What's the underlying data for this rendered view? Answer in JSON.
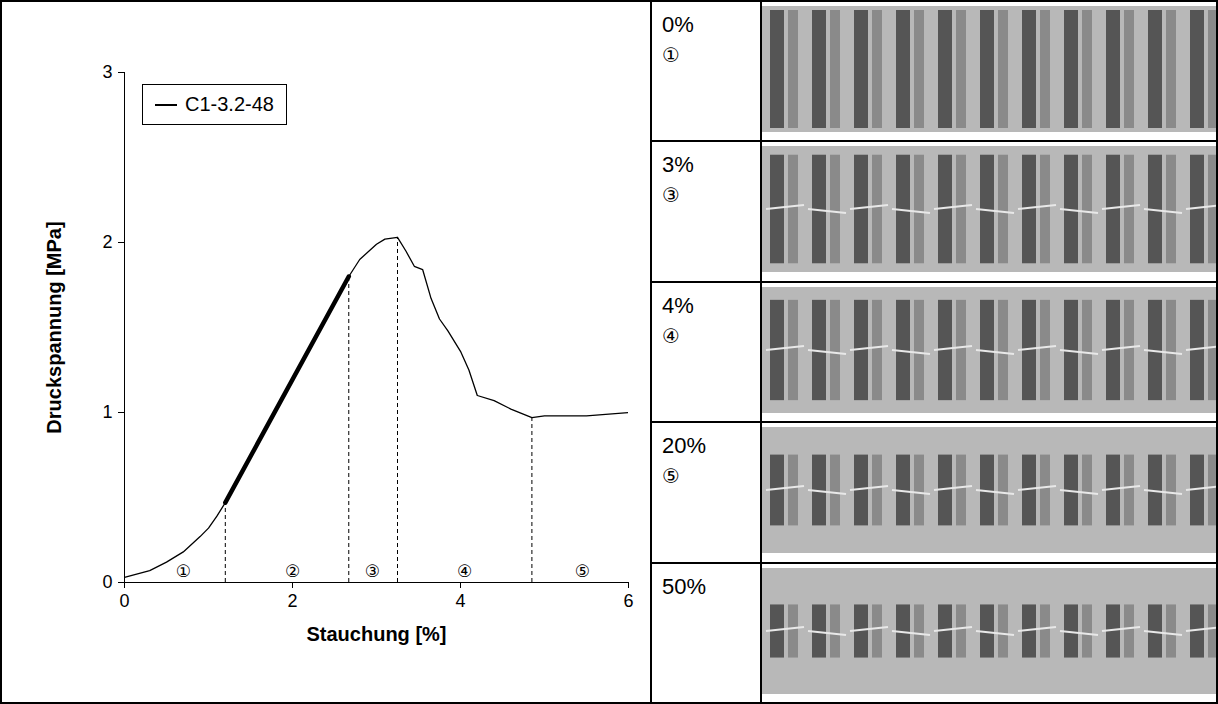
{
  "chart_data": {
    "type": "line",
    "xlabel": "Stauchung [%]",
    "ylabel": "Druckspannung [MPa]",
    "xlim": [
      0,
      6
    ],
    "ylim": [
      0,
      3
    ],
    "xticks": [
      0,
      2,
      4,
      6
    ],
    "yticks": [
      0,
      1,
      2,
      3
    ],
    "legend": "top-left",
    "x": [
      0,
      0.3,
      0.5,
      0.7,
      0.9,
      1.0,
      1.1,
      1.2,
      1.5,
      2.0,
      2.5,
      2.67,
      2.8,
      3.0,
      3.1,
      3.25,
      3.35,
      3.45,
      3.55,
      3.65,
      3.75,
      3.85,
      4.0,
      4.1,
      4.2,
      4.4,
      4.6,
      4.85,
      5.0,
      5.5,
      6.0
    ],
    "series": [
      {
        "name": "C1-3.2-48",
        "color": "#000000",
        "values": [
          0.03,
          0.07,
          0.12,
          0.18,
          0.27,
          0.32,
          0.39,
          0.47,
          0.74,
          1.2,
          1.65,
          1.8,
          1.9,
          1.99,
          2.02,
          2.03,
          1.95,
          1.86,
          1.84,
          1.67,
          1.55,
          1.48,
          1.36,
          1.25,
          1.1,
          1.07,
          1.02,
          0.97,
          0.98,
          0.98,
          1.0
        ]
      }
    ],
    "linear_fit": {
      "x": [
        1.2,
        2.67
      ],
      "values": [
        0.47,
        1.8
      ]
    },
    "region_bounds": {
      "x": [
        1.2,
        2.67,
        3.25,
        4.85
      ],
      "values": [
        0.47,
        1.8,
        2.03,
        0.97
      ]
    },
    "regions": {
      "labels": [
        "①",
        "②",
        "③",
        "④",
        "⑤"
      ],
      "x": [
        0.7,
        2.0,
        2.95,
        4.05,
        5.45
      ]
    }
  },
  "photos": [
    {
      "strain": "0%",
      "region": "①"
    },
    {
      "strain": "3%",
      "region": "③"
    },
    {
      "strain": "4%",
      "region": "④"
    },
    {
      "strain": "20%",
      "region": "⑤"
    },
    {
      "strain": "50%"
    }
  ]
}
